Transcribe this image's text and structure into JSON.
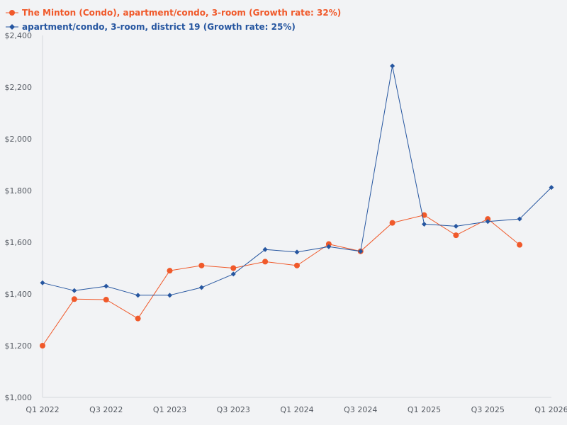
{
  "chart_data": {
    "type": "line",
    "title": "",
    "xlabel": "",
    "ylabel": "",
    "categories": [
      "Q1 2022",
      "Q2 2022",
      "Q3 2022",
      "Q4 2022",
      "Q1 2023",
      "Q2 2023",
      "Q3 2023",
      "Q4 2023",
      "Q1 2024",
      "Q2 2024",
      "Q3 2024",
      "Q4 2024",
      "Q1 2025",
      "Q2 2025",
      "Q3 2025",
      "Q4 2025",
      "Q1 2026"
    ],
    "x_tick_labels": [
      "Q1 2022",
      "",
      "Q3 2022",
      "",
      "Q1 2023",
      "",
      "Q3 2023",
      "",
      "Q1 2024",
      "",
      "Q3 2024",
      "",
      "Q1 2025",
      "",
      "Q3 2025",
      "",
      "Q1 2026"
    ],
    "ylim": [
      1000,
      2400
    ],
    "y_ticks": [
      1000,
      1200,
      1400,
      1600,
      1800,
      2000,
      2200,
      2400
    ],
    "y_tick_labels": [
      "$1,000",
      "$1,200",
      "$1,400",
      "$1,600",
      "$1,800",
      "$2,000",
      "$2,200",
      "$2,400"
    ],
    "legend_position": "top-left",
    "series": [
      {
        "name": "The Minton (Condo), apartment/condo, 3-room (Growth rate: 32%)",
        "color": "#f0592a",
        "marker": "circle",
        "values": [
          1200,
          1380,
          1378,
          1305,
          1490,
          1510,
          1500,
          1525,
          1510,
          1593,
          1565,
          1675,
          1705,
          1627,
          1690,
          1590,
          null
        ]
      },
      {
        "name": "apartment/condo, 3-room, district 19 (Growth rate: 25%)",
        "color": "#2656a0",
        "marker": "diamond",
        "values": [
          1443,
          1413,
          1430,
          1395,
          1395,
          1425,
          1477,
          1572,
          1562,
          1583,
          1565,
          2282,
          1670,
          1662,
          1680,
          1690,
          1812
        ]
      }
    ]
  }
}
